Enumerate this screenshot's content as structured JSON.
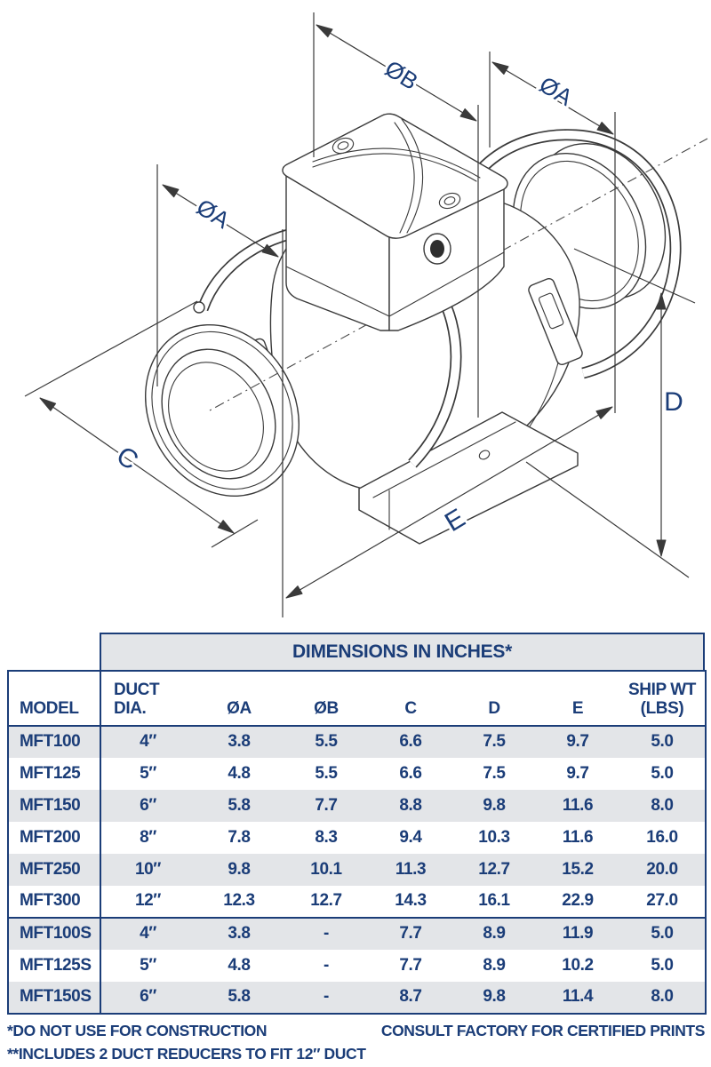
{
  "drawing": {
    "labels": {
      "dia_b": "ØB",
      "dia_a_right": "ØA",
      "dia_a_left": "ØA",
      "c": "C",
      "d": "D",
      "e": "E"
    }
  },
  "table": {
    "title": "DIMENSIONS IN INCHES*",
    "columns": [
      "MODEL",
      "DUCT\nDIA.",
      "ØA",
      "ØB",
      "C",
      "D",
      "E",
      "SHIP WT\n(LBS)"
    ],
    "rows": [
      {
        "section": "standard",
        "cells": [
          "MFT100",
          "4″",
          "3.8",
          "5.5",
          "6.6",
          "7.5",
          "9.7",
          "5.0"
        ]
      },
      {
        "section": "standard",
        "cells": [
          "MFT125",
          "5″",
          "4.8",
          "5.5",
          "6.6",
          "7.5",
          "9.7",
          "5.0"
        ]
      },
      {
        "section": "standard",
        "cells": [
          "MFT150",
          "6″",
          "5.8",
          "7.7",
          "8.8",
          "9.8",
          "11.6",
          "8.0"
        ]
      },
      {
        "section": "standard",
        "cells": [
          "MFT200",
          "8″",
          "7.8",
          "8.3",
          "9.4",
          "10.3",
          "11.6",
          "16.0"
        ]
      },
      {
        "section": "standard",
        "cells": [
          "MFT250",
          "10″",
          "9.8",
          "10.1",
          "11.3",
          "12.7",
          "15.2",
          "20.0"
        ]
      },
      {
        "section": "standard",
        "cells": [
          "MFT300",
          "12″",
          "12.3",
          "12.7",
          "14.3",
          "16.1",
          "22.9",
          "27.0"
        ]
      },
      {
        "section": "s-series",
        "cells": [
          "MFT100S",
          "4″",
          "3.8",
          "-",
          "7.7",
          "8.9",
          "11.9",
          "5.0"
        ]
      },
      {
        "section": "s-series",
        "cells": [
          "MFT125S",
          "5″",
          "4.8",
          "-",
          "7.7",
          "8.9",
          "10.2",
          "5.0"
        ]
      },
      {
        "section": "s-series",
        "cells": [
          "MFT150S",
          "6″",
          "5.8",
          "-",
          "8.7",
          "9.8",
          "11.4",
          "8.0"
        ]
      }
    ]
  },
  "footnotes": {
    "left1": "*DO NOT USE FOR CONSTRUCTION",
    "right1": "CONSULT FACTORY FOR CERTIFIED PRINTS",
    "left2": "**INCLUDES 2 DUCT REDUCERS TO FIT 12″ DUCT"
  },
  "colors": {
    "navy": "#1b3d78",
    "row_shade": "#e3e5e8",
    "line": "#3a3a3a"
  }
}
